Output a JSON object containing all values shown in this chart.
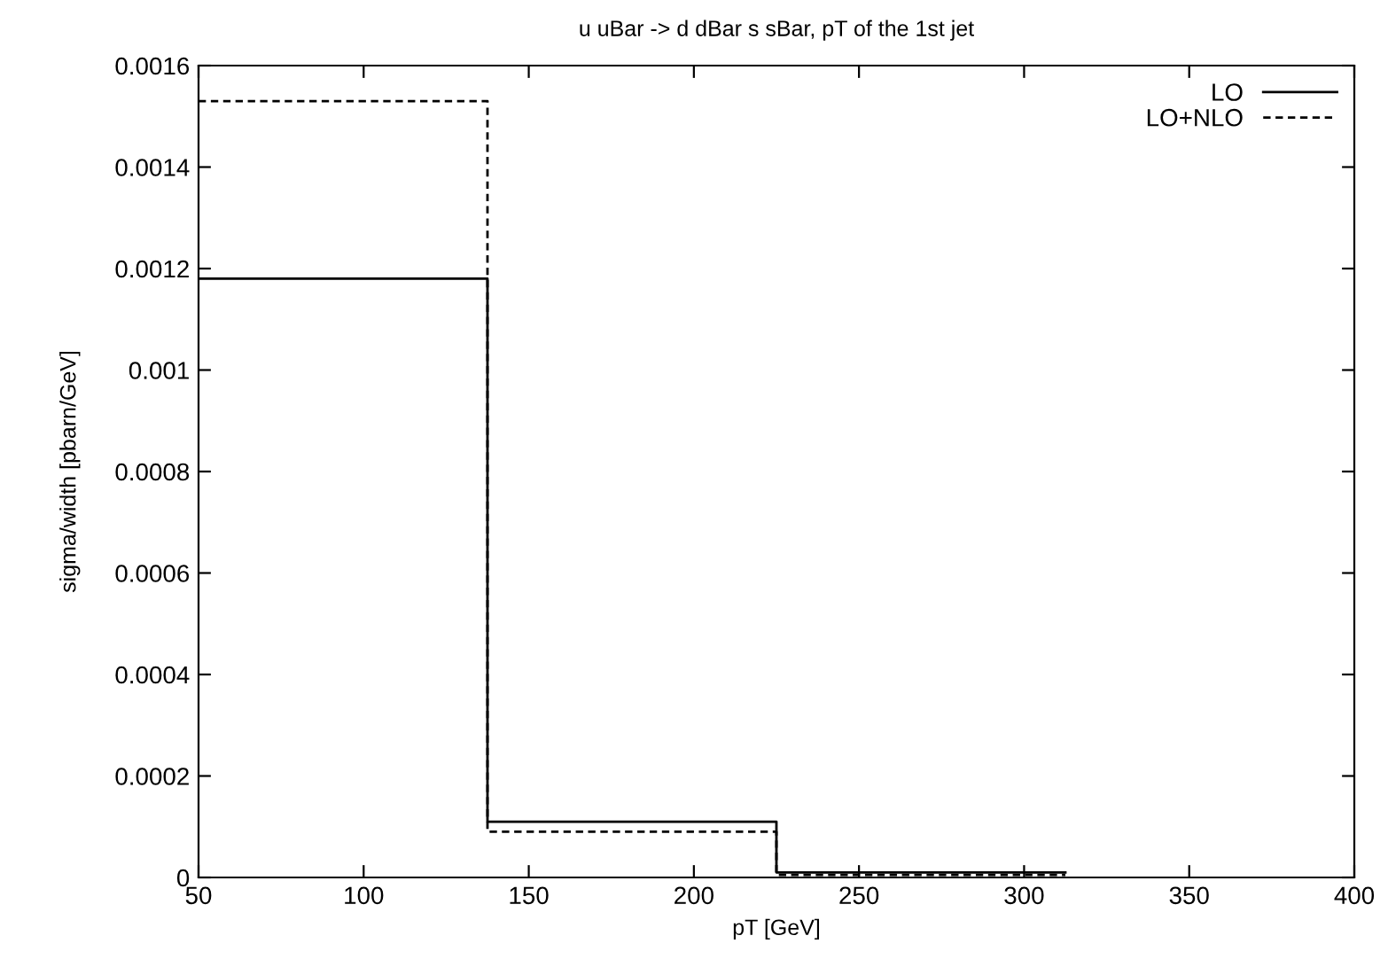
{
  "chart_data": {
    "type": "step",
    "title": "u uBar -> d dBar s sBar, pT of the 1st jet",
    "xlabel": "pT [GeV]",
    "ylabel": "sigma/width [pbarn/GeV]",
    "x": [
      50,
      137.5,
      225,
      312.5
    ],
    "series": [
      {
        "name": "LO",
        "color": "#000000",
        "line_style": "solid",
        "values": [
          0.00118,
          0.00011,
          1e-05,
          1e-05
        ]
      },
      {
        "name": "LO+NLO",
        "color": "#000000",
        "line_style": "dashed",
        "values": [
          0.00153,
          9e-05,
          5e-06,
          5e-06
        ]
      }
    ],
    "xlim": [
      50,
      400
    ],
    "xticks": [
      50,
      100,
      150,
      200,
      250,
      300,
      350,
      400
    ],
    "ylim": [
      0,
      0.0016
    ],
    "yticks": [
      0,
      0.0002,
      0.0004,
      0.0006,
      0.0008,
      0.001,
      0.0012,
      0.0014,
      0.0016
    ],
    "grid": false,
    "legend": "top right"
  }
}
